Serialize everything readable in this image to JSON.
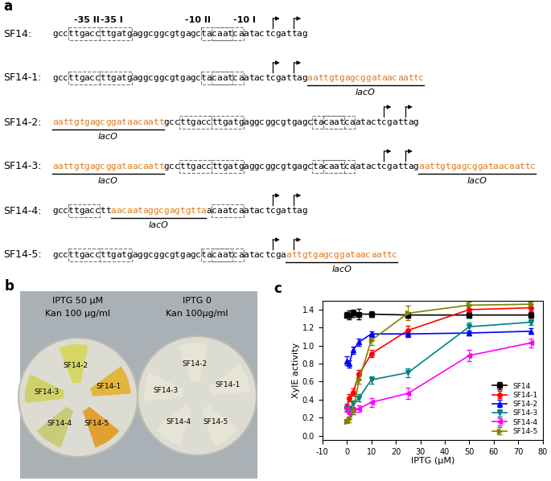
{
  "panel_a": {
    "label": "a",
    "elements": [
      "-35 II",
      "-35 I",
      "-10 II",
      "-10 I"
    ],
    "lacO_label": "lacO",
    "constructs": [
      {
        "name": "SF14:",
        "segments": [
          {
            "text": "gccttgaccttgatgaggcggcgtgagctacaatcaatactcgattag",
            "lacO": false
          }
        ]
      },
      {
        "name": "SF14-1:",
        "segments": [
          {
            "text": "gccttgaccttgatgaggcggcgtgagctacaatcaatactcgattag",
            "lacO": false
          },
          {
            "text": "aattgtgagcggataacaattc",
            "lacO": true
          }
        ]
      },
      {
        "name": "SF14-2:",
        "segments": [
          {
            "text": "aattgtgagcggataacaatt",
            "lacO": true
          },
          {
            "text": "gccttgaccttgatgaggcggcgtgagctacaatcaatactcgattag",
            "lacO": false
          }
        ]
      },
      {
        "name": "SF14-3:",
        "segments": [
          {
            "text": "aattgtgagcggataacaatt",
            "lacO": true
          },
          {
            "text": "gccttgaccttgatgaggcggcgtgagctacaatcaatactcgattag",
            "lacO": false
          },
          {
            "text": "aattgtgagcggataacaattc",
            "lacO": true
          }
        ]
      },
      {
        "name": "SF14-4:",
        "segments": [
          {
            "text": "gccttgacctt",
            "lacO": false
          },
          {
            "text": "aacaataggcgagtgtta",
            "lacO": true
          },
          {
            "text": "acaatcaatactcgattag",
            "lacO": false
          }
        ]
      },
      {
        "name": "SF14-5:",
        "segments": [
          {
            "text": "gccttgaccttgatgaggcggcgtgagctacaatcaatactcga",
            "lacO": false
          },
          {
            "text": "attgtgagcggataacaattc",
            "lacO": true
          }
        ]
      }
    ]
  },
  "panel_b": {
    "label": "b",
    "plates": [
      {
        "conditions": [
          "IPTG 50 μM",
          "Kan 100 μg/ml"
        ],
        "streaks": [
          "SF14-2",
          "SF14-1",
          "SF14-3",
          "SF14-4",
          "SF14-5"
        ]
      },
      {
        "conditions": [
          "IPTG 0",
          "Kan 100μg/ml"
        ],
        "streaks": [
          "SF14-2",
          "SF14-1",
          "SF14-3",
          "SF14-4",
          "SF14-5"
        ]
      }
    ]
  },
  "chart_data": {
    "type": "line",
    "panel_label": "c",
    "xlabel": "IPTG (μM)",
    "ylabel": "XylE activity",
    "x": [
      0,
      1,
      2.5,
      5,
      10,
      25,
      50,
      75
    ],
    "xlim": [
      -10,
      80
    ],
    "xticks": [
      -10,
      0,
      10,
      20,
      30,
      40,
      50,
      60,
      70,
      80
    ],
    "ylim": [
      -0.05,
      1.5
    ],
    "yticks": [
      {
        "value": 0,
        "label": "0.0"
      },
      {
        "value": 0.2,
        "label": "0.2"
      },
      {
        "value": 0.4,
        "label": "0.4"
      },
      {
        "value": 0.6,
        "label": "0.6"
      },
      {
        "value": 0.8,
        "label": "0.8"
      },
      {
        "value": 1.0,
        "label": "1.0"
      },
      {
        "value": 1.2,
        "label": "1.2"
      },
      {
        "value": 1.4,
        "label": "1.4"
      }
    ],
    "legend": "lower right",
    "series": [
      {
        "name": "SF14",
        "color": "#000000",
        "marker": "square",
        "values": [
          1.34,
          1.34,
          1.36,
          1.35,
          1.35,
          1.34,
          1.34,
          1.34
        ],
        "errors": [
          0.03,
          0.05,
          0.04,
          0.06,
          0.03,
          0.03,
          0.03,
          0.03
        ]
      },
      {
        "name": "SF14-1",
        "color": "#ff0000",
        "marker": "circle",
        "values": [
          0.32,
          0.42,
          0.48,
          0.68,
          0.91,
          1.17,
          1.4,
          1.42
        ],
        "errors": [
          0.03,
          0.04,
          0.04,
          0.05,
          0.04,
          0.05,
          0.04,
          0.04
        ]
      },
      {
        "name": "SF14-2",
        "color": "#0000ff",
        "marker": "triangle_up",
        "values": [
          0.83,
          0.8,
          0.95,
          1.04,
          1.13,
          1.13,
          1.14,
          1.16
        ],
        "errors": [
          0.05,
          0.04,
          0.04,
          0.04,
          0.03,
          0.03,
          0.03,
          0.03
        ]
      },
      {
        "name": "SF14-3",
        "color": "#008080",
        "marker": "triangle_down",
        "values": [
          0.3,
          0.3,
          0.35,
          0.42,
          0.62,
          0.7,
          1.21,
          1.26
        ],
        "errors": [
          0.03,
          0.03,
          0.04,
          0.04,
          0.04,
          0.05,
          0.05,
          0.03
        ]
      },
      {
        "name": "SF14-4",
        "color": "#ff00ff",
        "marker": "triangle_left",
        "values": [
          0.3,
          0.25,
          0.28,
          0.3,
          0.37,
          0.47,
          0.89,
          1.03
        ],
        "errors": [
          0.04,
          0.04,
          0.04,
          0.04,
          0.05,
          0.06,
          0.06,
          0.05
        ]
      },
      {
        "name": "SF14-5",
        "color": "#808000",
        "marker": "triangle_right",
        "values": [
          0.16,
          0.18,
          0.27,
          0.62,
          1.06,
          1.36,
          1.45,
          1.46
        ],
        "errors": [
          0.02,
          0.03,
          0.03,
          0.04,
          0.05,
          0.08,
          0.04,
          0.03
        ]
      }
    ]
  }
}
